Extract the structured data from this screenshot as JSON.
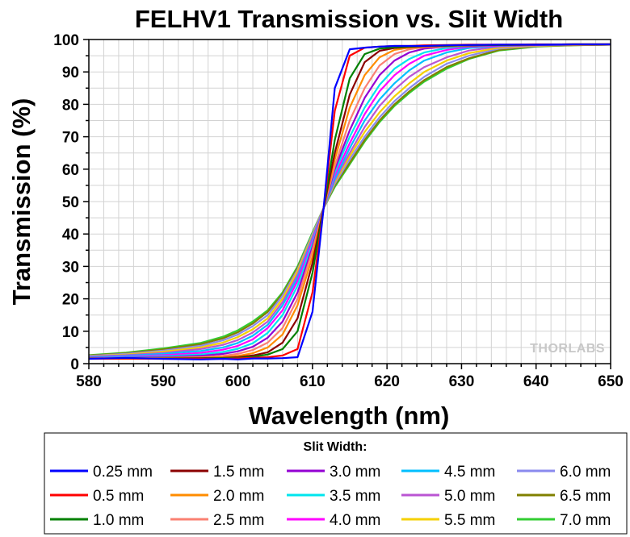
{
  "chart_data": {
    "type": "line",
    "title": "FELHV1 Transmission vs. Slit Width",
    "xlabel": "Wavelength (nm)",
    "ylabel": "Transmission (%)",
    "xlim": [
      580,
      650
    ],
    "ylim": [
      0,
      100
    ],
    "x_ticks": [
      580,
      590,
      600,
      610,
      620,
      630,
      640,
      650
    ],
    "y_ticks": [
      0,
      10,
      20,
      30,
      40,
      50,
      60,
      70,
      80,
      90,
      100
    ],
    "grid": true,
    "legend": {
      "title": "Slit Width:",
      "placement": "bottom"
    },
    "watermark": "THORLABS",
    "x": [
      580,
      585,
      590,
      595,
      598,
      600,
      602,
      604,
      606,
      608,
      610,
      611.5,
      613,
      615,
      617,
      619,
      621,
      623,
      625,
      628,
      631,
      635,
      640,
      645,
      650
    ],
    "series": [
      {
        "name": "0.25 mm",
        "color": "#0000ff",
        "values": [
          1.5,
          1.8,
          1.5,
          1.3,
          1.5,
          1.3,
          1.6,
          1.6,
          1.7,
          2.0,
          16,
          48,
          85,
          97,
          97.5,
          97.8,
          98,
          98,
          98,
          98.2,
          98.3,
          98.4,
          98.4,
          98.5,
          98.5
        ]
      },
      {
        "name": "0.5 mm",
        "color": "#ff0000",
        "values": [
          1.5,
          1.6,
          1.5,
          1.5,
          1.5,
          1.6,
          1.8,
          2.0,
          2.5,
          4.5,
          22,
          48,
          78,
          95,
          97.5,
          97.8,
          98,
          98,
          98.2,
          98.3,
          98.4,
          98.4,
          98.5,
          98.5,
          98.5
        ]
      },
      {
        "name": "1.0 mm",
        "color": "#008000",
        "values": [
          1.6,
          1.6,
          1.6,
          1.6,
          1.7,
          1.8,
          2.1,
          2.8,
          4.5,
          10,
          28,
          48,
          69,
          88,
          95.5,
          97.2,
          97.6,
          97.8,
          98,
          98.1,
          98.2,
          98.3,
          98.4,
          98.5,
          98.5
        ]
      },
      {
        "name": "1.5 mm",
        "color": "#8b0000",
        "values": [
          1.6,
          1.6,
          1.6,
          1.7,
          1.8,
          2.0,
          2.5,
          3.5,
          6.5,
          14,
          31,
          48,
          65,
          83,
          93,
          96.5,
          97.4,
          97.7,
          97.9,
          98.1,
          98.2,
          98.3,
          98.4,
          98.5,
          98.5
        ]
      },
      {
        "name": "2.0 mm",
        "color": "#ff8c00",
        "values": [
          1.6,
          1.6,
          1.7,
          1.8,
          2.0,
          2.4,
          3.2,
          5.0,
          9.0,
          18,
          33,
          48,
          63,
          79,
          89,
          94.5,
          96.8,
          97.5,
          97.8,
          98,
          98.2,
          98.3,
          98.4,
          98.5,
          98.5
        ]
      },
      {
        "name": "2.5 mm",
        "color": "#fa8072",
        "values": [
          1.7,
          1.7,
          1.8,
          2.0,
          2.4,
          3.0,
          4.2,
          6.5,
          11,
          20,
          35,
          48,
          61,
          75,
          85,
          92,
          95.5,
          97,
          97.6,
          97.9,
          98.1,
          98.3,
          98.4,
          98.5,
          98.5
        ]
      },
      {
        "name": "3.0 mm",
        "color": "#9400d3",
        "values": [
          1.8,
          1.8,
          2.0,
          2.4,
          3.0,
          3.8,
          5.2,
          8.0,
          13,
          22,
          36,
          48,
          60,
          72,
          82,
          89,
          93.5,
          96,
          97.2,
          97.8,
          98,
          98.2,
          98.3,
          98.4,
          98.5
        ]
      },
      {
        "name": "3.5 mm",
        "color": "#00e5ee",
        "values": [
          1.9,
          2.0,
          2.3,
          2.8,
          3.6,
          4.6,
          6.3,
          9.5,
          15,
          24,
          37,
          48,
          59,
          70,
          79,
          86,
          91,
          94,
          96,
          97.4,
          98,
          98.2,
          98.3,
          98.4,
          98.5
        ]
      },
      {
        "name": "4.0 mm",
        "color": "#ff00ff",
        "values": [
          2.0,
          2.2,
          2.6,
          3.3,
          4.3,
          5.5,
          7.5,
          11,
          16.5,
          25.5,
          38,
          48,
          58,
          68,
          77,
          84,
          89,
          92.5,
          95,
          96.8,
          97.8,
          98.1,
          98.3,
          98.4,
          98.5
        ]
      },
      {
        "name": "4.5 mm",
        "color": "#00bfff",
        "values": [
          2.1,
          2.4,
          3.0,
          3.9,
          5.0,
          6.4,
          8.6,
          12,
          18,
          26.5,
          38.5,
          48,
          57,
          66.5,
          75,
          81.5,
          86.5,
          90.5,
          93.5,
          96,
          97.4,
          98,
          98.3,
          98.4,
          98.5
        ]
      },
      {
        "name": "5.0 mm",
        "color": "#ba55d3",
        "values": [
          2.2,
          2.6,
          3.3,
          4.5,
          5.8,
          7.3,
          9.6,
          13,
          19,
          27.5,
          39,
          48,
          56.5,
          65,
          73,
          79.5,
          84.5,
          88.5,
          91.5,
          94.5,
          96.6,
          97.8,
          98.2,
          98.4,
          98.5
        ]
      },
      {
        "name": "5.5 mm",
        "color": "#f5d000",
        "values": [
          2.3,
          2.8,
          3.7,
          5.0,
          6.5,
          8.2,
          10.6,
          14,
          20,
          28.5,
          39.5,
          48,
          56,
          64,
          71.5,
          77.5,
          82.5,
          86.5,
          90,
          93.5,
          95.8,
          97.5,
          98.1,
          98.3,
          98.4
        ]
      },
      {
        "name": "6.0 mm",
        "color": "#8a8aee",
        "values": [
          2.4,
          3.0,
          4.0,
          5.5,
          7.2,
          9.0,
          11.6,
          15,
          21,
          29,
          40,
          48,
          55.5,
          63,
          70,
          76,
          81,
          85,
          88.5,
          92.5,
          95,
          97.2,
          98,
          98.3,
          98.4
        ]
      },
      {
        "name": "6.5 mm",
        "color": "#808000",
        "values": [
          2.5,
          3.2,
          4.4,
          6.0,
          7.8,
          9.7,
          12.4,
          16,
          21.5,
          29.5,
          40,
          48,
          55,
          62,
          69,
          75,
          80,
          84,
          87.5,
          91.5,
          94.2,
          96.8,
          97.9,
          98.2,
          98.4
        ]
      },
      {
        "name": "7.0 mm",
        "color": "#32cd32",
        "values": [
          2.6,
          3.4,
          4.7,
          6.4,
          8.3,
          10.3,
          13,
          16.5,
          22,
          30,
          40.5,
          48,
          54.5,
          61.5,
          68.5,
          74.5,
          79.5,
          83.5,
          87,
          91,
          94,
          96.6,
          97.8,
          98.2,
          98.4
        ]
      }
    ]
  }
}
